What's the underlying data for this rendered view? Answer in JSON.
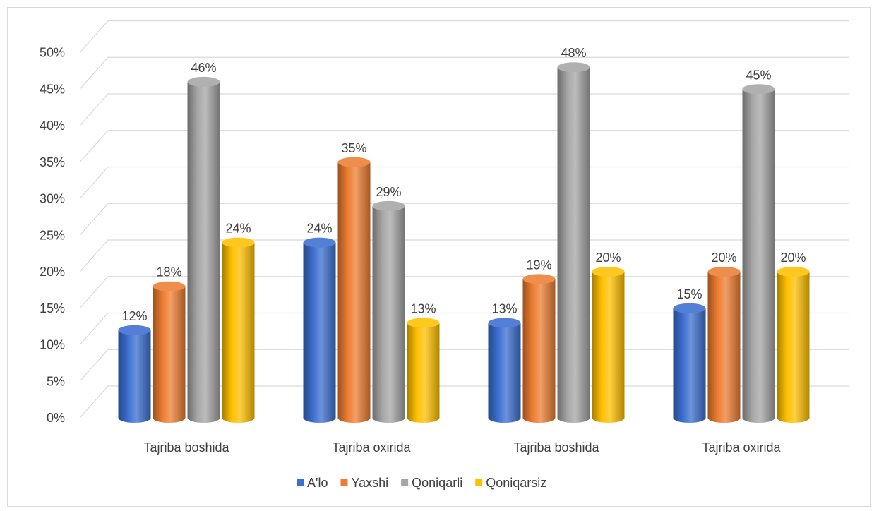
{
  "chart_data": {
    "type": "bar",
    "categories": [
      "Tajriba boshida",
      "Tajriba oxirida",
      "Tajriba boshida",
      "Tajriba oxirida"
    ],
    "series": [
      {
        "name": "A'lo",
        "color": "#3b6fd0",
        "values": [
          12,
          24,
          13,
          15
        ],
        "labels": [
          "12%",
          "24%",
          "13%",
          "15%"
        ]
      },
      {
        "name": "Yaxshi",
        "color": "#ed7d31",
        "values": [
          18,
          35,
          19,
          20
        ],
        "labels": [
          "18%",
          "35%",
          "19%",
          "20%"
        ]
      },
      {
        "name": "Qoniqarli",
        "color": "#a5a5a5",
        "values": [
          46,
          29,
          48,
          45
        ],
        "labels": [
          "46%",
          "29%",
          "48%",
          "45%"
        ]
      },
      {
        "name": "Qoniqarsiz",
        "color": "#ffc000",
        "values": [
          24,
          13,
          20,
          20
        ],
        "labels": [
          "24%",
          "13%",
          "20%",
          "20%"
        ]
      }
    ],
    "y_ticks": [
      "0%",
      "5%",
      "10%",
      "15%",
      "20%",
      "25%",
      "30%",
      "35%",
      "40%",
      "45%",
      "50%"
    ],
    "ylim": [
      0,
      50
    ],
    "unit": "%",
    "grid": true,
    "legend_position": "bottom",
    "style": "3d-cylinder"
  }
}
